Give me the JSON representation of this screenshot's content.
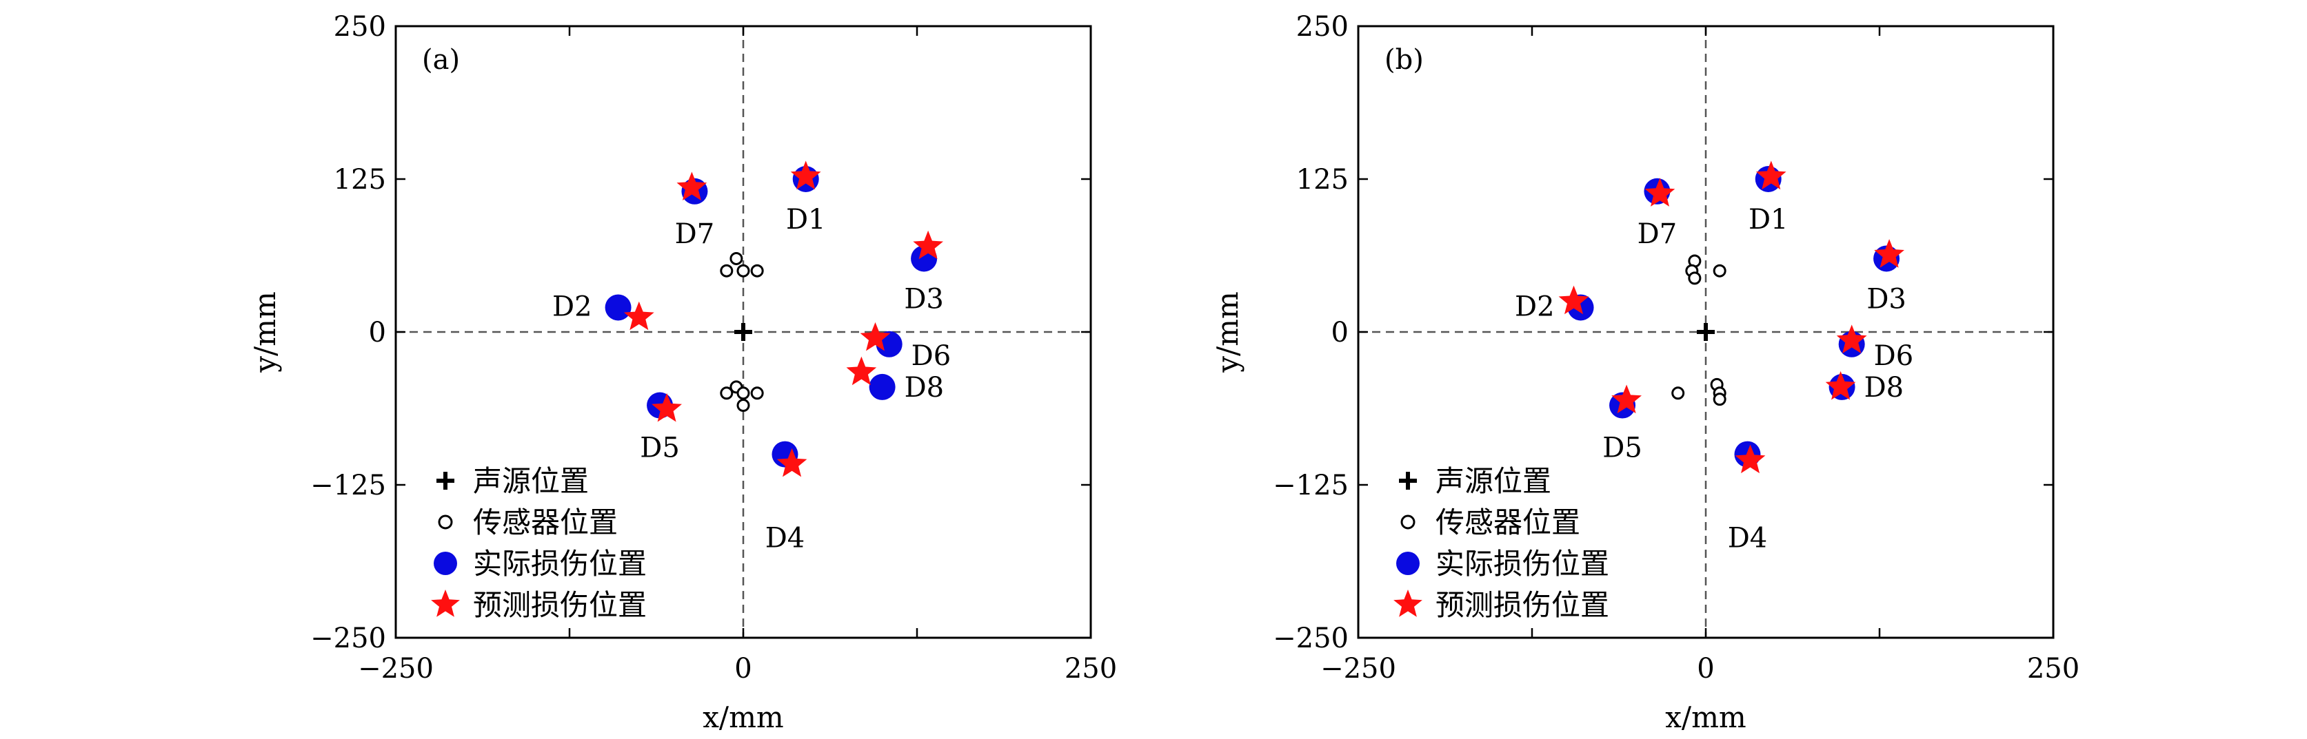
{
  "chart_data": [
    {
      "type": "scatter",
      "panel_label": "(a)",
      "xlabel": "x/mm",
      "ylabel": "y/mm",
      "xlim": [
        -250,
        250
      ],
      "ylim": [
        -250,
        250
      ],
      "xticks": [
        -250,
        0,
        250
      ],
      "yticks": [
        -250,
        -125,
        0,
        125,
        250
      ],
      "xtick_labels": [
        "−250",
        "0",
        "250"
      ],
      "ytick_labels": [
        "−250",
        "−125",
        "0",
        "125",
        "250"
      ],
      "legend_position": "lower-left",
      "legend": [
        "声源位置",
        "传感器位置",
        "实际损伤位置",
        "预测损伤位置"
      ],
      "source": {
        "x": 0,
        "y": 0
      },
      "sensors": [
        {
          "x": -5,
          "y": 60
        },
        {
          "x": -12,
          "y": 50
        },
        {
          "x": 0,
          "y": 50
        },
        {
          "x": 10,
          "y": 50
        },
        {
          "x": -5,
          "y": -45
        },
        {
          "x": -12,
          "y": -50
        },
        {
          "x": 0,
          "y": -50
        },
        {
          "x": 10,
          "y": -50
        },
        {
          "x": 0,
          "y": -60
        }
      ],
      "actual": [
        {
          "name": "D1",
          "x": 45,
          "y": 125
        },
        {
          "name": "D2",
          "x": -90,
          "y": 20
        },
        {
          "name": "D3",
          "x": 130,
          "y": 60
        },
        {
          "name": "D4",
          "x": 30,
          "y": -100
        },
        {
          "name": "D5",
          "x": -60,
          "y": -60
        },
        {
          "name": "D6",
          "x": 105,
          "y": -10
        },
        {
          "name": "D7",
          "x": -35,
          "y": 115
        },
        {
          "name": "D8",
          "x": 100,
          "y": -45
        }
      ],
      "predicted": [
        {
          "name": "D1",
          "x": 45,
          "y": 127
        },
        {
          "name": "D2",
          "x": -75,
          "y": 12
        },
        {
          "name": "D3",
          "x": 133,
          "y": 70
        },
        {
          "name": "D4",
          "x": 35,
          "y": -108
        },
        {
          "name": "D5",
          "x": -55,
          "y": -63
        },
        {
          "name": "D6",
          "x": 95,
          "y": -5
        },
        {
          "name": "D7",
          "x": -37,
          "y": 118
        },
        {
          "name": "D8",
          "x": 85,
          "y": -33
        }
      ]
    },
    {
      "type": "scatter",
      "panel_label": "(b)",
      "xlabel": "x/mm",
      "ylabel": "y/mm",
      "xlim": [
        -250,
        250
      ],
      "ylim": [
        -250,
        250
      ],
      "xticks": [
        -250,
        0,
        250
      ],
      "yticks": [
        -250,
        -125,
        0,
        125,
        250
      ],
      "xtick_labels": [
        "−250",
        "0",
        "250"
      ],
      "ytick_labels": [
        "−250",
        "−125",
        "0",
        "125",
        "250"
      ],
      "legend_position": "lower-left",
      "legend": [
        "声源位置",
        "传感器位置",
        "实际损伤位置",
        "预测损伤位置"
      ],
      "source": {
        "x": 0,
        "y": 0
      },
      "sensors": [
        {
          "x": -8,
          "y": 58
        },
        {
          "x": -10,
          "y": 50
        },
        {
          "x": -8,
          "y": 44
        },
        {
          "x": 10,
          "y": 50
        },
        {
          "x": 8,
          "y": -43
        },
        {
          "x": 10,
          "y": -50
        },
        {
          "x": -20,
          "y": -50
        },
        {
          "x": 10,
          "y": -55
        }
      ],
      "actual": [
        {
          "name": "D1",
          "x": 45,
          "y": 125
        },
        {
          "name": "D2",
          "x": -90,
          "y": 20
        },
        {
          "name": "D3",
          "x": 130,
          "y": 60
        },
        {
          "name": "D4",
          "x": 30,
          "y": -100
        },
        {
          "name": "D5",
          "x": -60,
          "y": -60
        },
        {
          "name": "D6",
          "x": 105,
          "y": -10
        },
        {
          "name": "D7",
          "x": -35,
          "y": 115
        },
        {
          "name": "D8",
          "x": 98,
          "y": -45
        }
      ],
      "predicted": [
        {
          "name": "D1",
          "x": 47,
          "y": 127
        },
        {
          "name": "D2",
          "x": -95,
          "y": 25
        },
        {
          "name": "D3",
          "x": 132,
          "y": 63
        },
        {
          "name": "D4",
          "x": 32,
          "y": -105
        },
        {
          "name": "D5",
          "x": -57,
          "y": -56
        },
        {
          "name": "D6",
          "x": 105,
          "y": -7
        },
        {
          "name": "D7",
          "x": -33,
          "y": 113
        },
        {
          "name": "D8",
          "x": 97,
          "y": -45
        }
      ]
    }
  ],
  "colors": {
    "actual_marker": "#0a0ae0",
    "predicted_marker": "#ff1010",
    "axis": "#000000",
    "dashed_axis": "#555555"
  },
  "icons": {
    "source": "plus-icon",
    "sensor": "open-circle-icon",
    "actual": "filled-circle-icon",
    "predicted": "star-icon"
  }
}
